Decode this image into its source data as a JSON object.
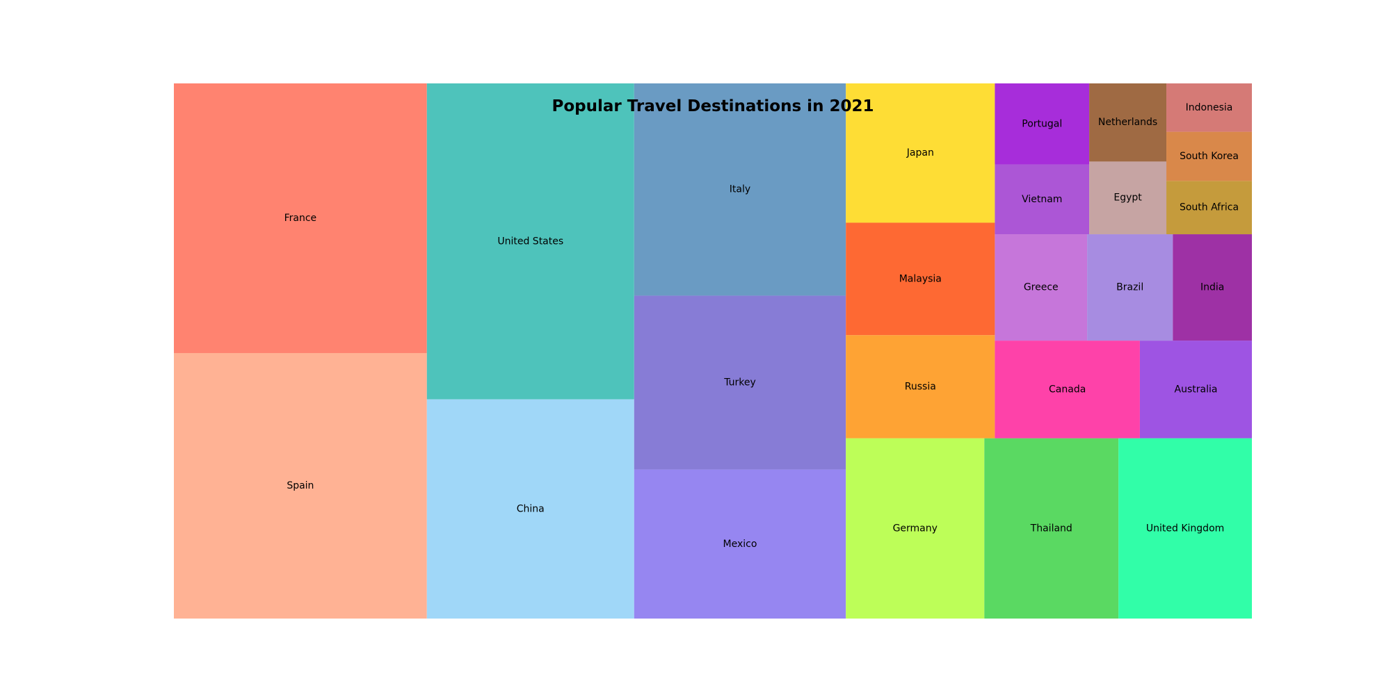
{
  "chart_data": {
    "type": "treemap",
    "title": "Popular Travel Destinations in 2021",
    "grid": false,
    "legend": "none",
    "items": [
      {
        "label": "France",
        "value": 97.3,
        "color": "#ff8370"
      },
      {
        "label": "Spain",
        "value": 95.8,
        "color": "#ffb294"
      },
      {
        "label": "United States",
        "value": 93.4,
        "color": "#4ec3bb"
      },
      {
        "label": "China",
        "value": 64.8,
        "color": "#a0d7f8"
      },
      {
        "label": "Italy",
        "value": 64.1,
        "color": "#6a9bc3"
      },
      {
        "label": "Turkey",
        "value": 52.5,
        "color": "#877cd6"
      },
      {
        "label": "Mexico",
        "value": 45.0,
        "color": "#9686f1"
      },
      {
        "label": "Germany",
        "value": 35.6,
        "color": "#bdfe58"
      },
      {
        "label": "Thailand",
        "value": 34.5,
        "color": "#5ad962"
      },
      {
        "label": "United Kingdom",
        "value": 34.3,
        "color": "#31fea8"
      },
      {
        "label": "Japan",
        "value": 29.6,
        "color": "#fedd35"
      },
      {
        "label": "Malaysia",
        "value": 23.9,
        "color": "#fe6933"
      },
      {
        "label": "Russia",
        "value": 21.9,
        "color": "#fea334"
      },
      {
        "label": "Canada",
        "value": 20.2,
        "color": "#fe42a9"
      },
      {
        "label": "Australia",
        "value": 15.6,
        "color": "#9e54e3"
      },
      {
        "label": "Greece",
        "value": 14.0,
        "color": "#c676da"
      },
      {
        "label": "Brazil",
        "value": 13.0,
        "color": "#a78ce1"
      },
      {
        "label": "India",
        "value": 12.0,
        "color": "#9e31a5"
      },
      {
        "label": "Portugal",
        "value": 10.9,
        "color": "#a72dda"
      },
      {
        "label": "Vietnam",
        "value": 9.4,
        "color": "#ac56d6"
      },
      {
        "label": "Netherlands",
        "value": 8.6,
        "color": "#9f6a43"
      },
      {
        "label": "Egypt",
        "value": 8.0,
        "color": "#c6a4a3"
      },
      {
        "label": "South Africa",
        "value": 6.5,
        "color": "#c59b3c"
      },
      {
        "label": "South Korea",
        "value": 6.0,
        "color": "#d9884a"
      },
      {
        "label": "Indonesia",
        "value": 5.9,
        "color": "#d57a76"
      }
    ]
  }
}
